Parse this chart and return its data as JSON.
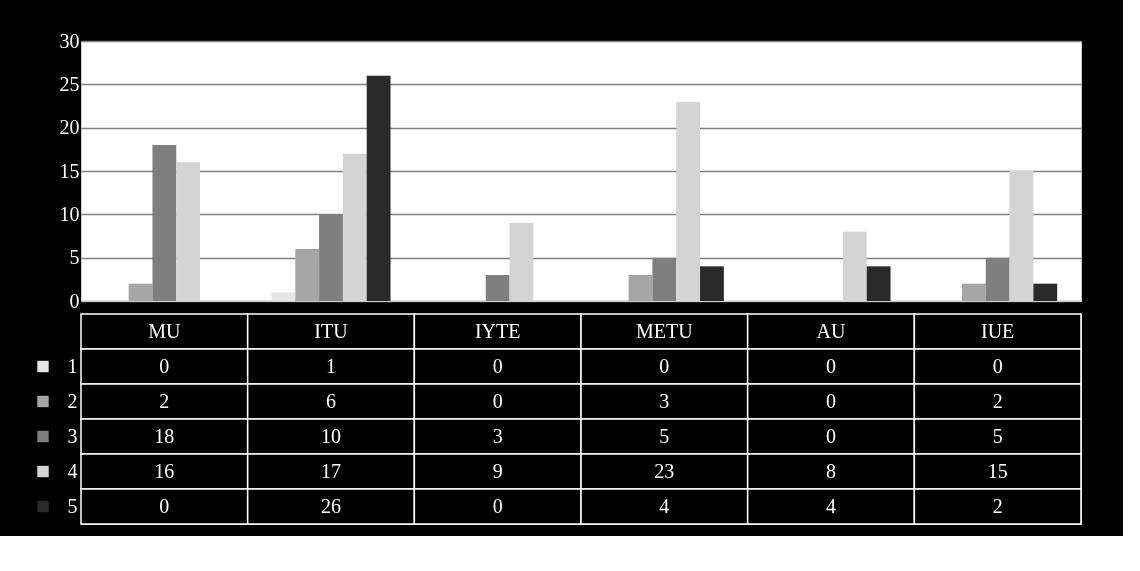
{
  "chart_data": {
    "type": "bar",
    "categories": [
      "MU",
      "ITU",
      "IYTE",
      "METU",
      "AU",
      "IUE"
    ],
    "series": [
      {
        "name": "1",
        "color": "#e6e6e6",
        "values": [
          0,
          1,
          0,
          0,
          0,
          0
        ]
      },
      {
        "name": "2",
        "color": "#a6a6a6",
        "values": [
          2,
          6,
          0,
          3,
          0,
          2
        ]
      },
      {
        "name": "3",
        "color": "#7f7f7f",
        "values": [
          18,
          10,
          3,
          5,
          0,
          5
        ]
      },
      {
        "name": "4",
        "color": "#d4d4d4",
        "values": [
          16,
          17,
          9,
          23,
          8,
          15
        ]
      },
      {
        "name": "5",
        "color": "#2a2a2a",
        "values": [
          0,
          26,
          0,
          4,
          4,
          2
        ]
      }
    ],
    "ylim": [
      0,
      30
    ],
    "yticks": [
      0,
      5,
      10,
      15,
      20,
      25,
      30
    ],
    "grid": "y",
    "legend": "bottom",
    "data_labels": true
  }
}
